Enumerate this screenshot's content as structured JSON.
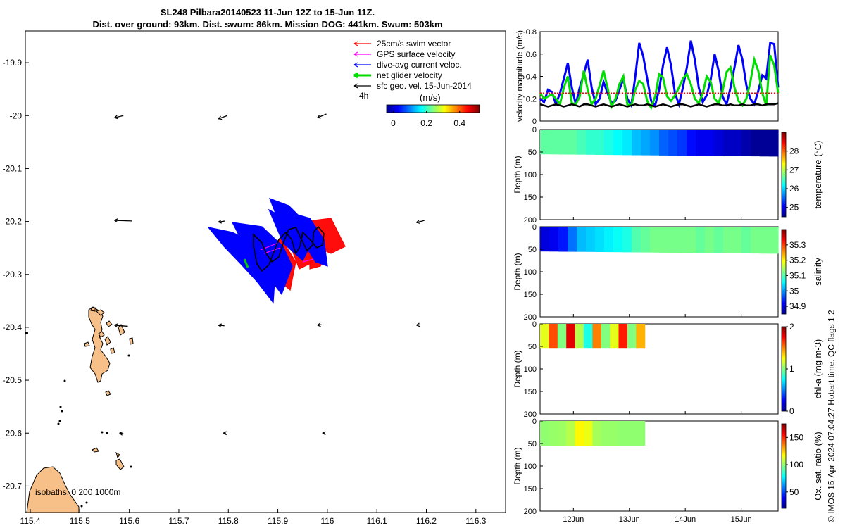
{
  "title": {
    "line1": "SL248 Pilbara20140523 11-Jun 12Z to 15-Jun 11Z.",
    "line2": "Dist. over ground: 93km. Dist. swum: 86km. Mission DOG: 441km. Swum: 503km"
  },
  "map": {
    "x_ticks": [
      "115.4",
      "115.5",
      "115.6",
      "115.7",
      "115.8",
      "115.9",
      "116",
      "116.1",
      "116.2",
      "116.3"
    ],
    "y_ticks": [
      "-19.9",
      "-20",
      "-20.1",
      "-20.2",
      "-20.3",
      "-20.4",
      "-20.5",
      "-20.6",
      "-20.7"
    ],
    "xlim": [
      115.39,
      116.36
    ],
    "ylim": [
      -20.75,
      -19.84
    ],
    "legend": [
      {
        "label": "25cm/s swim vector",
        "color": "#ff0000"
      },
      {
        "label": "GPS surface velocity",
        "color": "#ff00ff"
      },
      {
        "label": "dive-avg current veloc.",
        "color": "#0000ff"
      },
      {
        "label": "net glider velocity",
        "color": "#00dd00"
      },
      {
        "label": "sfc geo. vel. 15-Jun-2014",
        "color": "#000000"
      }
    ],
    "legend_extra": "4h",
    "colorbar_label": "(m/s)",
    "colorbar_ticks": [
      "0",
      "0.2",
      "0.4"
    ],
    "isobaths_label": "isobaths: 0    200  1000m",
    "geo_vectors": [
      {
        "lon": 115.57,
        "lat": -20.004,
        "u": 0.018,
        "v": 0.004
      },
      {
        "lon": 115.78,
        "lat": -20.006,
        "u": 0.018,
        "v": 0.006
      },
      {
        "lon": 115.98,
        "lat": -20.004,
        "u": 0.018,
        "v": 0.007
      },
      {
        "lon": 115.57,
        "lat": -20.198,
        "u": 0.035,
        "v": -0.001
      },
      {
        "lon": 115.78,
        "lat": -20.201,
        "u": 0.014,
        "v": 0.002
      },
      {
        "lon": 116.18,
        "lat": -20.202,
        "u": 0.016,
        "v": 0.004
      },
      {
        "lon": 115.57,
        "lat": -20.396,
        "u": 0.027,
        "v": -0.002
      },
      {
        "lon": 115.78,
        "lat": -20.396,
        "u": 0.012,
        "v": -0.001
      },
      {
        "lon": 115.98,
        "lat": -20.396,
        "u": 0.008,
        "v": 0.001
      },
      {
        "lon": 116.18,
        "lat": -20.396,
        "u": 0.008,
        "v": 0.001
      },
      {
        "lon": 115.58,
        "lat": -20.6,
        "u": 0.008,
        "v": -0.001
      },
      {
        "lon": 115.79,
        "lat": -20.6,
        "u": 0.005,
        "v": 0
      },
      {
        "lon": 115.99,
        "lat": -20.6,
        "u": 0.005,
        "v": 0
      }
    ]
  },
  "velocity_panel": {
    "ylabel": "velocity magnitude (m/s)",
    "y_ticks": [
      "0",
      "0.2",
      "0.4",
      "0.6",
      "0.8"
    ],
    "ylim": [
      0,
      0.8
    ],
    "series": [
      {
        "color": "#0000ff",
        "values": [
          0.2,
          0.17,
          0.28,
          0.26,
          0.15,
          0.25,
          0.38,
          0.52,
          0.3,
          0.15,
          0.3,
          0.42,
          0.55,
          0.3,
          0.15,
          0.2,
          0.35,
          0.25,
          0.16,
          0.18,
          0.28,
          0.38,
          0.2,
          0.14,
          0.4,
          0.7,
          0.58,
          0.38,
          0.18,
          0.14,
          0.28,
          0.5,
          0.66,
          0.5,
          0.25,
          0.15,
          0.3,
          0.48,
          0.72,
          0.55,
          0.3,
          0.17,
          0.23,
          0.37,
          0.6,
          0.45,
          0.22,
          0.15,
          0.3,
          0.48,
          0.68,
          0.55,
          0.32,
          0.2,
          0.15,
          0.27,
          0.41,
          0.38,
          0.7,
          0.69,
          0.3
        ]
      },
      {
        "color": "#00dd00",
        "values": [
          0.25,
          0.2,
          0.22,
          0.24,
          0.2,
          0.15,
          0.3,
          0.4,
          0.16,
          0.15,
          0.22,
          0.45,
          0.28,
          0.15,
          0.2,
          0.32,
          0.45,
          0.3,
          0.13,
          0.2,
          0.33,
          0.4,
          0.15,
          0.14,
          0.28,
          0.36,
          0.33,
          0.18,
          0.12,
          0.22,
          0.42,
          0.39,
          0.22,
          0.18,
          0.23,
          0.3,
          0.38,
          0.42,
          0.33,
          0.2,
          0.16,
          0.25,
          0.4,
          0.35,
          0.2,
          0.16,
          0.27,
          0.44,
          0.48,
          0.3,
          0.18,
          0.14,
          0.2,
          0.35,
          0.55,
          0.45,
          0.25,
          0.14,
          0.59,
          0.5,
          0.25
        ]
      },
      {
        "color": "#000000",
        "values": [
          0.15,
          0.14,
          0.13,
          0.14,
          0.15,
          0.14,
          0.13,
          0.14,
          0.15,
          0.14,
          0.13,
          0.15,
          0.15,
          0.14,
          0.13,
          0.14,
          0.15,
          0.14,
          0.13,
          0.14,
          0.15,
          0.14,
          0.13,
          0.14,
          0.15,
          0.14,
          0.14,
          0.15,
          0.14,
          0.13,
          0.14,
          0.15,
          0.14,
          0.13,
          0.14,
          0.15,
          0.15,
          0.14,
          0.13,
          0.14,
          0.15,
          0.14,
          0.13,
          0.14,
          0.15,
          0.15,
          0.14,
          0.14,
          0.15,
          0.14,
          0.14,
          0.15,
          0.14,
          0.14,
          0.15,
          0.15,
          0.14,
          0.15,
          0.15,
          0.15,
          0.16
        ]
      },
      {
        "color": "#ff0000",
        "values": [
          0.25,
          0.25
        ]
      }
    ]
  },
  "section_panels": [
    {
      "name": "temperature",
      "colorbar_label": "temperature (°C)",
      "cbar_ticks": [
        "25",
        "26",
        "27",
        "28"
      ],
      "cbar_range": [
        24.5,
        29
      ],
      "ylabel": "Depth (m)",
      "y_ticks": [
        "0",
        "50",
        "100",
        "150",
        "200"
      ],
      "extent": [
        0,
        1
      ],
      "depth_top": [
        0,
        0
      ],
      "depth_bottom": [
        55,
        60
      ],
      "columns": [
        26.6,
        26.6,
        26.6,
        26.6,
        26.5,
        26.4,
        26.4,
        26.3,
        26.2,
        26.1,
        25.9,
        25.8,
        25.7,
        25.5,
        25.4,
        25.3,
        25.1,
        25.0,
        25.0,
        24.9,
        24.8,
        24.8,
        24.7,
        24.6,
        24.6,
        24.6
      ]
    },
    {
      "name": "salinity",
      "colorbar_label": "salinity",
      "cbar_ticks": [
        "34.9",
        "35",
        "35.1",
        "35.2",
        "35.3"
      ],
      "cbar_range": [
        34.85,
        35.4
      ],
      "ylabel": "Depth (m)",
      "y_ticks": [
        "0",
        "50",
        "100",
        "150",
        "200"
      ],
      "extent": [
        0,
        1
      ],
      "depth_top": [
        0,
        0
      ],
      "depth_bottom": [
        55,
        60
      ],
      "columns": [
        34.9,
        34.91,
        34.93,
        34.98,
        35.02,
        35.03,
        35.04,
        35.05,
        35.06,
        35.07,
        35.1,
        35.11,
        35.12,
        35.12,
        35.12,
        35.12,
        35.12,
        35.11,
        35.12,
        35.11,
        35.12,
        35.12,
        35.11,
        35.12,
        35.12,
        35.12
      ]
    },
    {
      "name": "chl",
      "colorbar_label": "chl-a (mg m-3)",
      "cbar_ticks": [
        "0",
        "1",
        "2"
      ],
      "cbar_range": [
        0,
        2
      ],
      "ylabel": "Depth (m)",
      "y_ticks": [
        "0",
        "50",
        "100",
        "150",
        "200"
      ],
      "extent": [
        0,
        0.44
      ],
      "depth_top": [
        0,
        0
      ],
      "depth_bottom": [
        55,
        55
      ],
      "columns": [
        1.2,
        1.6,
        1.0,
        1.8,
        1.1,
        0.8,
        1.5,
        1.0,
        1.2,
        1.7,
        1.0,
        1.4
      ]
    },
    {
      "name": "oxygen",
      "colorbar_label": "Ox. sat. ratio (%)",
      "cbar_ticks": [
        "50",
        "100",
        "150"
      ],
      "cbar_range": [
        20,
        175
      ],
      "ylabel": "Depth (m)",
      "y_ticks": [
        "0",
        "50",
        "100",
        "150",
        "200"
      ],
      "extent": [
        0,
        0.44
      ],
      "depth_top": [
        0,
        0
      ],
      "depth_bottom": [
        55,
        55
      ],
      "columns": [
        100,
        101,
        102,
        106,
        118,
        114,
        103,
        101,
        101,
        100,
        100,
        100
      ]
    }
  ],
  "time_ticks": [
    "12Jun",
    "13Jun",
    "14Jun",
    "15Jun"
  ],
  "stamp": "© IMOS 15-Apr-2024 07:04:27 Hobart time. QC flags 1  2"
}
